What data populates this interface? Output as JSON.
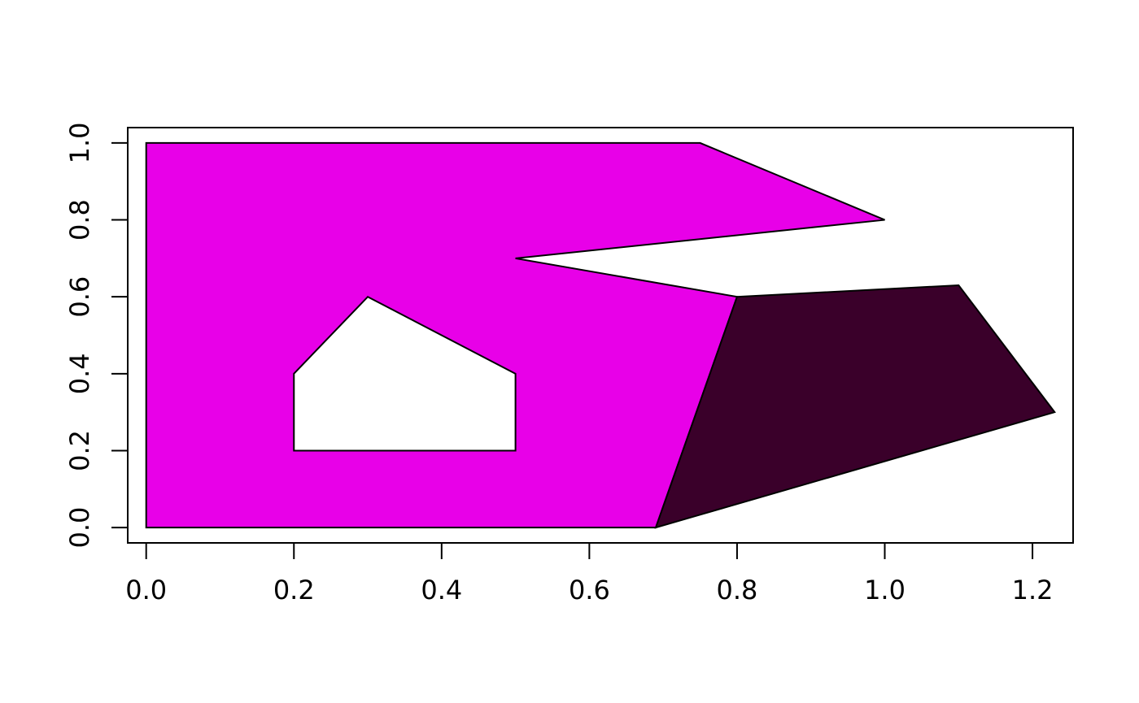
{
  "chart_data": {
    "type": "polygon",
    "title": "",
    "xlabel": "",
    "ylabel": "",
    "xlim": [
      -0.025,
      1.255
    ],
    "ylim": [
      -0.04,
      1.04
    ],
    "x_ticks": [
      0,
      0.2,
      0.4,
      0.6,
      0.8,
      1.0,
      1.2
    ],
    "x_tick_labels": [
      "0.0",
      "0.2",
      "0.4",
      "0.6",
      "0.8",
      "1.0",
      "1.2"
    ],
    "y_ticks": [
      0,
      0.2,
      0.4,
      0.6,
      0.8,
      1.0
    ],
    "y_tick_labels": [
      "0.0",
      "0.2",
      "0.4",
      "0.6",
      "0.8",
      "1.0"
    ],
    "grid": false,
    "legend": "none",
    "polygons": [
      {
        "fill": "#E800E8",
        "stroke": "#000000",
        "outer": [
          [
            0,
            0
          ],
          [
            0,
            1
          ],
          [
            0.75,
            1
          ],
          [
            1.0,
            0.8
          ],
          [
            0.5,
            0.7
          ],
          [
            0.8,
            0.6
          ],
          [
            0.69,
            0
          ]
        ],
        "holes": [
          [
            [
              0.2,
              0.2
            ],
            [
              0.2,
              0.4
            ],
            [
              0.3,
              0.6
            ],
            [
              0.5,
              0.4
            ],
            [
              0.5,
              0.2
            ]
          ]
        ]
      },
      {
        "fill": "#3A002A",
        "stroke": "#000000",
        "outer": [
          [
            0.69,
            0
          ],
          [
            0.8,
            0.6
          ],
          [
            1.1,
            0.63
          ],
          [
            1.23,
            0.3
          ]
        ],
        "holes": []
      }
    ]
  }
}
